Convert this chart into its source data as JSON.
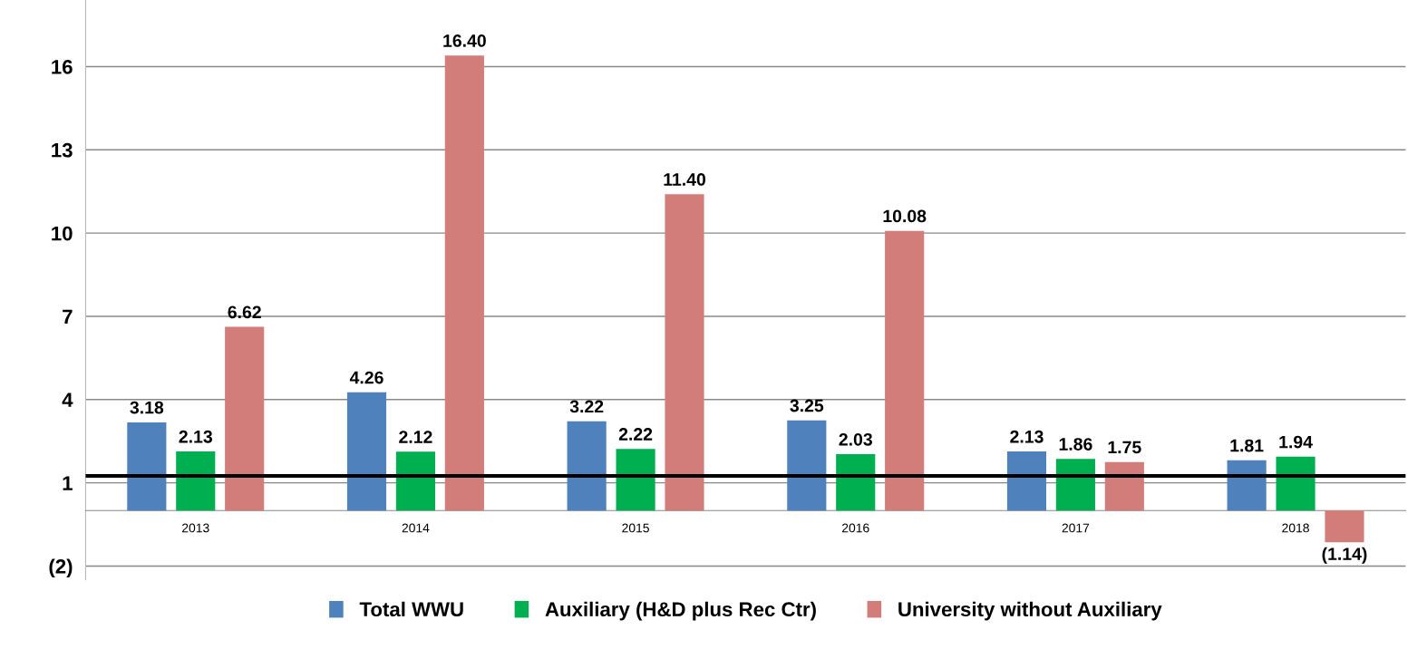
{
  "chart_data": {
    "type": "bar",
    "categories": [
      "2013",
      "2014",
      "2015",
      "2016",
      "2017",
      "2018"
    ],
    "series": [
      {
        "name": "Total WWU",
        "color": "#4f81bd",
        "values": [
          3.18,
          4.26,
          3.22,
          3.25,
          2.13,
          1.81
        ],
        "value_labels": [
          "3.18",
          "4.26",
          "3.22",
          "3.25",
          "2.13",
          "1.81"
        ]
      },
      {
        "name": "Auxiliary (H&D plus Rec Ctr)",
        "color": "#00b050",
        "values": [
          2.13,
          2.12,
          2.22,
          2.03,
          1.86,
          1.94
        ],
        "value_labels": [
          "2.13",
          "2.12",
          "2.22",
          "2.03",
          "1.86",
          "1.94"
        ]
      },
      {
        "name": "University without Auxiliary",
        "color": "#d27d7a",
        "values": [
          6.62,
          16.4,
          11.4,
          10.08,
          1.75,
          -1.14
        ],
        "value_labels": [
          "6.62",
          "16.40",
          "11.40",
          "10.08",
          "1.75",
          "(1.14)"
        ]
      }
    ],
    "ylim": [
      -2.5,
      18.4
    ],
    "yticks": [
      {
        "value": -2,
        "label": "(2)"
      },
      1,
      4,
      7,
      10,
      13,
      16
    ],
    "ref_lines": [
      {
        "axis": "y",
        "value": 1.25,
        "color": "#000000"
      }
    ],
    "grid": "y",
    "legend": "bottom"
  }
}
